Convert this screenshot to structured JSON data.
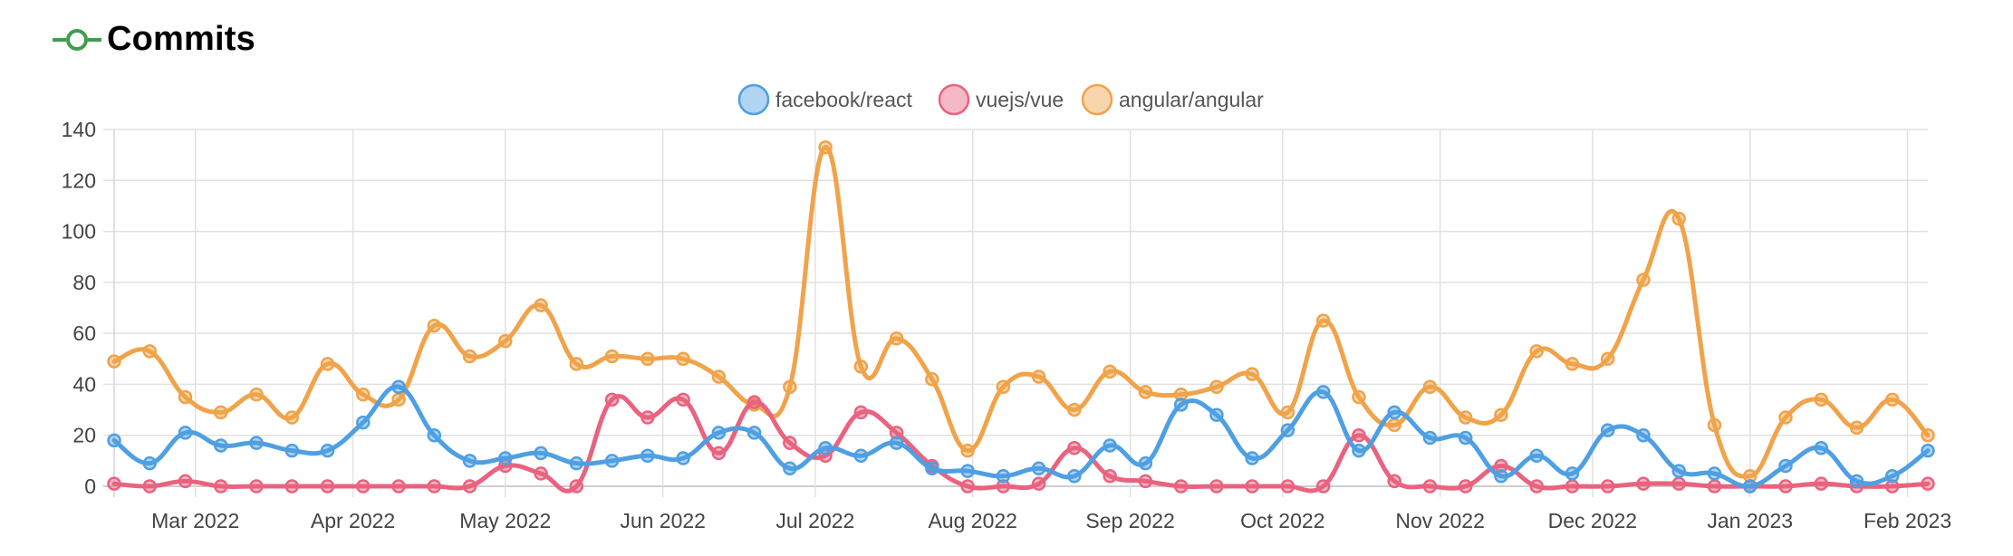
{
  "header": {
    "title": "Commits",
    "icon": "git-commit-icon"
  },
  "colors": {
    "react": "#4f9fe3",
    "vue": "#e9637f",
    "angular": "#f0a34a",
    "grid": "#e1e1e1",
    "icon": "#3f9e4d"
  },
  "chart_data": {
    "type": "line",
    "title": "",
    "xlabel": "",
    "ylabel": "",
    "ylim": [
      0,
      140
    ],
    "yticks": [
      0,
      20,
      40,
      60,
      80,
      100,
      120,
      140
    ],
    "grid": true,
    "legend_position": "top-center",
    "x_start": "2022-02-13",
    "x_end": "2023-02-05",
    "xtick_labels": [
      {
        "label": "Mar 2022",
        "date": "2022-03-01"
      },
      {
        "label": "Apr 2022",
        "date": "2022-04-01"
      },
      {
        "label": "May 2022",
        "date": "2022-05-01"
      },
      {
        "label": "Jun 2022",
        "date": "2022-06-01"
      },
      {
        "label": "Jul 2022",
        "date": "2022-07-01"
      },
      {
        "label": "Aug 2022",
        "date": "2022-08-01"
      },
      {
        "label": "Sep 2022",
        "date": "2022-09-01"
      },
      {
        "label": "Oct 2022",
        "date": "2022-10-01"
      },
      {
        "label": "Nov 2022",
        "date": "2022-11-01"
      },
      {
        "label": "Dec 2022",
        "date": "2022-12-01"
      },
      {
        "label": "Jan 2023",
        "date": "2023-01-01"
      },
      {
        "label": "Feb 2023",
        "date": "2023-02-01"
      }
    ],
    "x": [
      "2022-02-13",
      "2022-02-20",
      "2022-02-27",
      "2022-03-06",
      "2022-03-13",
      "2022-03-20",
      "2022-03-27",
      "2022-04-03",
      "2022-04-10",
      "2022-04-17",
      "2022-04-24",
      "2022-05-01",
      "2022-05-08",
      "2022-05-15",
      "2022-05-22",
      "2022-05-29",
      "2022-06-05",
      "2022-06-12",
      "2022-06-19",
      "2022-06-26",
      "2022-07-03",
      "2022-07-10",
      "2022-07-17",
      "2022-07-24",
      "2022-07-31",
      "2022-08-07",
      "2022-08-14",
      "2022-08-21",
      "2022-08-28",
      "2022-09-04",
      "2022-09-11",
      "2022-09-18",
      "2022-09-25",
      "2022-10-02",
      "2022-10-09",
      "2022-10-16",
      "2022-10-23",
      "2022-10-30",
      "2022-11-06",
      "2022-11-13",
      "2022-11-20",
      "2022-11-27",
      "2022-12-04",
      "2022-12-11",
      "2022-12-18",
      "2022-12-25",
      "2023-01-01",
      "2023-01-08",
      "2023-01-15",
      "2023-01-22",
      "2023-01-29",
      "2023-02-05"
    ],
    "series": [
      {
        "name": "facebook/react",
        "color": "#4f9fe3",
        "values": [
          18,
          9,
          21,
          16,
          17,
          14,
          14,
          25,
          39,
          20,
          10,
          11,
          13,
          9,
          10,
          12,
          11,
          21,
          21,
          7,
          15,
          12,
          17,
          7,
          6,
          4,
          7,
          4,
          16,
          9,
          32,
          28,
          11,
          22,
          37,
          14,
          29,
          19,
          19,
          4,
          12,
          5,
          22,
          20,
          6,
          5,
          0,
          8,
          15,
          2,
          4,
          14
        ]
      },
      {
        "name": "vuejs/vue",
        "color": "#e9637f",
        "values": [
          1,
          0,
          2,
          0,
          0,
          0,
          0,
          0,
          0,
          0,
          0,
          8,
          5,
          0,
          34,
          27,
          34,
          13,
          33,
          17,
          12,
          29,
          21,
          8,
          0,
          0,
          1,
          15,
          4,
          2,
          0,
          0,
          0,
          0,
          0,
          20,
          2,
          0,
          0,
          8,
          0,
          0,
          0,
          1,
          1,
          0,
          0,
          0,
          1,
          0,
          0,
          1
        ]
      },
      {
        "name": "angular/angular",
        "color": "#f0a34a",
        "values": [
          49,
          53,
          35,
          29,
          36,
          27,
          48,
          36,
          34,
          63,
          51,
          57,
          71,
          48,
          51,
          50,
          50,
          43,
          32,
          39,
          133,
          47,
          58,
          42,
          14,
          39,
          43,
          30,
          45,
          37,
          36,
          39,
          44,
          29,
          65,
          35,
          24,
          39,
          27,
          28,
          53,
          48,
          50,
          81,
          105,
          24,
          4,
          27,
          34,
          23,
          34,
          20
        ]
      }
    ]
  }
}
